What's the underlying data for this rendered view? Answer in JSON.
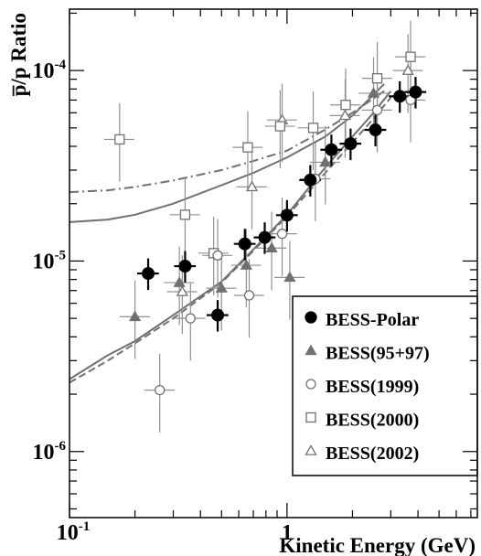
{
  "chart_data": {
    "type": "scatter",
    "title": "",
    "xlabel": "Kinetic Energy (GeV)",
    "ylabel": "p̅/p Ratio",
    "xscale": "log",
    "yscale": "log",
    "xlim": [
      0.1,
      7.5
    ],
    "ylim": [
      4.5e-07,
      0.00021
    ],
    "x_tick_labels": [
      {
        "value": 0.1,
        "base": "10",
        "exp": "-1"
      },
      {
        "value": 1,
        "base": "1",
        "exp": ""
      }
    ],
    "y_tick_labels": [
      {
        "value": 1e-06,
        "base": "10",
        "exp": "-6"
      },
      {
        "value": 1e-05,
        "base": "10",
        "exp": "-5"
      },
      {
        "value": 0.0001,
        "base": "10",
        "exp": "-4"
      }
    ],
    "grid": false,
    "legend_position": "bottom-right",
    "series": [
      {
        "name": "BESS-Polar",
        "marker": "filled-circle",
        "color": "#000000",
        "points": [
          {
            "x": 0.23,
            "y": 8.6e-06
          },
          {
            "x": 0.34,
            "y": 9.4e-06
          },
          {
            "x": 0.48,
            "y": 5.2e-06
          },
          {
            "x": 0.64,
            "y": 1.23e-05
          },
          {
            "x": 0.79,
            "y": 1.33e-05
          },
          {
            "x": 1.0,
            "y": 1.74e-05
          },
          {
            "x": 1.28,
            "y": 2.66e-05
          },
          {
            "x": 1.6,
            "y": 3.84e-05
          },
          {
            "x": 1.96,
            "y": 4.13e-05
          },
          {
            "x": 2.55,
            "y": 4.88e-05
          },
          {
            "x": 3.3,
            "y": 7.32e-05
          },
          {
            "x": 3.9,
            "y": 7.71e-05
          }
        ]
      },
      {
        "name": "BESS(95+97)",
        "marker": "filled-triangle",
        "color": "#707070",
        "points": [
          {
            "x": 0.2,
            "y": 5.1e-06
          },
          {
            "x": 0.32,
            "y": 7.7e-06
          },
          {
            "x": 0.5,
            "y": 7.2e-06
          },
          {
            "x": 0.65,
            "y": 9.5e-06
          },
          {
            "x": 0.85,
            "y": 1.17e-05
          },
          {
            "x": 1.03,
            "y": 8.2e-06
          },
          {
            "x": 1.5,
            "y": 3.3e-05
          },
          {
            "x": 2.5,
            "y": 7.6e-05
          }
        ]
      },
      {
        "name": "BESS(1999)",
        "marker": "open-circle",
        "color": "#707070",
        "points": [
          {
            "x": 0.26,
            "y": 2.1e-06
          },
          {
            "x": 0.36,
            "y": 5e-06
          },
          {
            "x": 0.48,
            "y": 1.07e-05
          },
          {
            "x": 0.67,
            "y": 6.6e-06
          },
          {
            "x": 0.95,
            "y": 1.39e-05
          },
          {
            "x": 1.35,
            "y": 2.7e-05
          },
          {
            "x": 2.6,
            "y": 6.2e-05
          },
          {
            "x": 3.7,
            "y": 7e-05
          }
        ]
      },
      {
        "name": "BESS(2000)",
        "marker": "open-square",
        "color": "#707070",
        "points": [
          {
            "x": 0.17,
            "y": 4.35e-05
          },
          {
            "x": 0.34,
            "y": 1.75e-05
          },
          {
            "x": 0.46,
            "y": 1.1e-05
          },
          {
            "x": 0.66,
            "y": 3.95e-05
          },
          {
            "x": 0.93,
            "y": 5.1e-05
          },
          {
            "x": 1.32,
            "y": 5e-05
          },
          {
            "x": 1.86,
            "y": 6.6e-05
          },
          {
            "x": 2.6,
            "y": 9.1e-05
          },
          {
            "x": 3.7,
            "y": 0.000118
          }
        ]
      },
      {
        "name": "BESS(2002)",
        "marker": "open-triangle",
        "color": "#707070",
        "points": [
          {
            "x": 0.33,
            "y": 6.9e-06
          },
          {
            "x": 0.69,
            "y": 2.45e-05
          },
          {
            "x": 0.95,
            "y": 5.5e-05
          },
          {
            "x": 1.85,
            "y": 5.8e-05
          },
          {
            "x": 3.6,
            "y": 0.0001
          }
        ]
      }
    ],
    "curves": [
      {
        "style": "dash-dot",
        "color": "#707070",
        "points": [
          {
            "x": 0.1,
            "y": 2.3e-05
          },
          {
            "x": 0.15,
            "y": 2.35e-05
          },
          {
            "x": 0.2,
            "y": 2.45e-05
          },
          {
            "x": 0.3,
            "y": 2.65e-05
          },
          {
            "x": 0.5,
            "y": 3e-05
          },
          {
            "x": 0.7,
            "y": 3.35e-05
          },
          {
            "x": 1.0,
            "y": 3.8e-05
          },
          {
            "x": 1.5,
            "y": 4.9e-05
          },
          {
            "x": 2.0,
            "y": 6e-05
          },
          {
            "x": 2.8,
            "y": 7.8e-05
          }
        ]
      },
      {
        "style": "solid",
        "color": "#707070",
        "points": [
          {
            "x": 0.1,
            "y": 1.6e-05
          },
          {
            "x": 0.15,
            "y": 1.65e-05
          },
          {
            "x": 0.2,
            "y": 1.75e-05
          },
          {
            "x": 0.3,
            "y": 2e-05
          },
          {
            "x": 0.5,
            "y": 2.5e-05
          },
          {
            "x": 0.7,
            "y": 2.9e-05
          },
          {
            "x": 1.0,
            "y": 3.5e-05
          },
          {
            "x": 1.5,
            "y": 4.5e-05
          },
          {
            "x": 2.0,
            "y": 5.8e-05
          },
          {
            "x": 2.8,
            "y": 8.5e-05
          }
        ]
      },
      {
        "style": "solid",
        "color": "#707070",
        "points": [
          {
            "x": 0.1,
            "y": 2.4e-06
          },
          {
            "x": 0.15,
            "y": 3.2e-06
          },
          {
            "x": 0.2,
            "y": 3.8e-06
          },
          {
            "x": 0.3,
            "y": 5.2e-06
          },
          {
            "x": 0.5,
            "y": 7.8e-06
          },
          {
            "x": 0.7,
            "y": 1.15e-05
          },
          {
            "x": 1.0,
            "y": 1.75e-05
          },
          {
            "x": 1.5,
            "y": 3.1e-05
          },
          {
            "x": 2.0,
            "y": 4.5e-05
          },
          {
            "x": 2.5,
            "y": 6e-05
          },
          {
            "x": 3.0,
            "y": 7.8e-05
          }
        ]
      },
      {
        "style": "dashed",
        "color": "#707070",
        "points": [
          {
            "x": 0.1,
            "y": 2.3e-06
          },
          {
            "x": 0.15,
            "y": 3e-06
          },
          {
            "x": 0.2,
            "y": 3.7e-06
          },
          {
            "x": 0.3,
            "y": 5e-06
          },
          {
            "x": 0.5,
            "y": 7.7e-06
          },
          {
            "x": 0.7,
            "y": 1.13e-05
          },
          {
            "x": 1.0,
            "y": 1.72e-05
          },
          {
            "x": 1.5,
            "y": 2.9e-05
          },
          {
            "x": 2.0,
            "y": 4.2e-05
          },
          {
            "x": 2.5,
            "y": 5.6e-05
          },
          {
            "x": 3.0,
            "y": 7.2e-05
          }
        ]
      }
    ]
  }
}
